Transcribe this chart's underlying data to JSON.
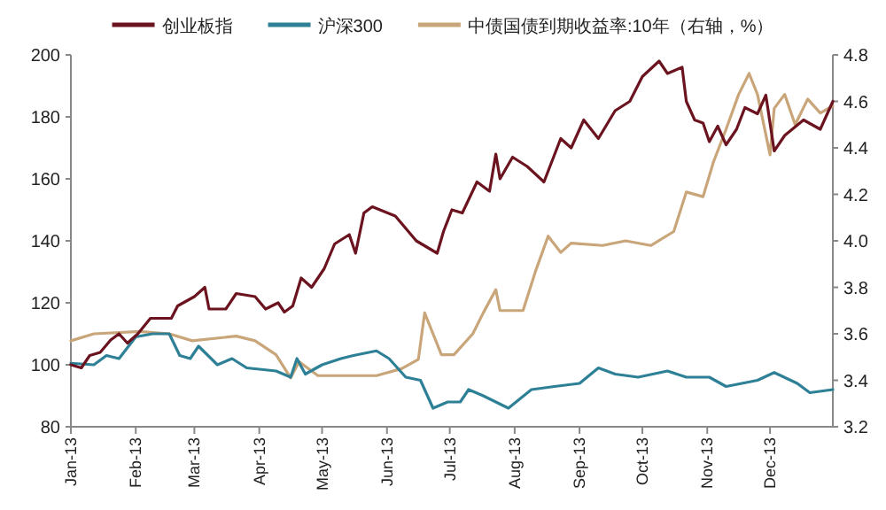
{
  "chart_data": {
    "type": "line",
    "legend": "top",
    "xlim": [
      "2013-01-01",
      "2013-12-31"
    ],
    "xticks": [
      {
        "value": "2013-01-01",
        "label": "Jan-13"
      },
      {
        "value": "2013-02-01",
        "label": "Feb-13"
      },
      {
        "value": "2013-03-01",
        "label": "Mar-13"
      },
      {
        "value": "2013-04-01",
        "label": "Apr-13"
      },
      {
        "value": "2013-05-01",
        "label": "May-13"
      },
      {
        "value": "2013-06-01",
        "label": "Jun-13"
      },
      {
        "value": "2013-07-01",
        "label": "Jul-13"
      },
      {
        "value": "2013-08-01",
        "label": "Aug-13"
      },
      {
        "value": "2013-09-01",
        "label": "Sep-13"
      },
      {
        "value": "2013-10-01",
        "label": "Oct-13"
      },
      {
        "value": "2013-11-01",
        "label": "Nov-13"
      },
      {
        "value": "2013-12-01",
        "label": "Dec-13"
      }
    ],
    "ylim": [
      80,
      200
    ],
    "yticks": [
      80,
      100,
      120,
      140,
      160,
      180,
      200
    ],
    "y2lim": [
      3.2,
      4.8
    ],
    "y2ticks": [
      {
        "value": 3.2,
        "label": "3.2"
      },
      {
        "value": 3.4,
        "label": "3.4"
      },
      {
        "value": 3.6,
        "label": "3.6"
      },
      {
        "value": 3.8,
        "label": "3.8"
      },
      {
        "value": 4.0,
        "label": "4.0"
      },
      {
        "value": 4.2,
        "label": "4.2"
      },
      {
        "value": 4.4,
        "label": "4.4"
      },
      {
        "value": 4.6,
        "label": "4.6"
      },
      {
        "value": 4.8,
        "label": "4.8"
      }
    ],
    "series": [
      {
        "name": "创业板指",
        "color": "#6b1420",
        "x": [
          "2013-01-01",
          "2013-01-06",
          "2013-01-10",
          "2013-01-15",
          "2013-01-20",
          "2013-01-24",
          "2013-01-28",
          "2013-02-02",
          "2013-02-08",
          "2013-02-18",
          "2013-02-21",
          "2013-03-01",
          "2013-03-06",
          "2013-03-08",
          "2013-03-16",
          "2013-03-21",
          "2013-03-30",
          "2013-04-04",
          "2013-04-10",
          "2013-04-13",
          "2013-04-17",
          "2013-04-21",
          "2013-04-26",
          "2013-05-02",
          "2013-05-07",
          "2013-05-14",
          "2013-05-17",
          "2013-05-21",
          "2013-05-25",
          "2013-06-05",
          "2013-06-15",
          "2013-06-25",
          "2013-06-28",
          "2013-07-02",
          "2013-07-07",
          "2013-07-14",
          "2013-07-20",
          "2013-07-23",
          "2013-07-25",
          "2013-07-31",
          "2013-08-07",
          "2013-08-15",
          "2013-08-23",
          "2013-08-28",
          "2013-09-03",
          "2013-09-10",
          "2013-09-18",
          "2013-09-25",
          "2013-10-01",
          "2013-10-09",
          "2013-10-13",
          "2013-10-20",
          "2013-10-22",
          "2013-10-26",
          "2013-10-30",
          "2013-11-02",
          "2013-11-06",
          "2013-11-10",
          "2013-11-15",
          "2013-11-19",
          "2013-11-25",
          "2013-11-29",
          "2013-12-03",
          "2013-12-08",
          "2013-12-17",
          "2013-12-25",
          "2013-12-29",
          "2013-12-31"
        ],
        "values": [
          100,
          99,
          103,
          104,
          108,
          110,
          107,
          110,
          115,
          115,
          119,
          122,
          125,
          118,
          118,
          123,
          122,
          118,
          120,
          117,
          119,
          128,
          125,
          131,
          139,
          142,
          136,
          149,
          151,
          148,
          140,
          136,
          143,
          150,
          149,
          159,
          156,
          168,
          160,
          167,
          164,
          159,
          173,
          170,
          179,
          173,
          182,
          185,
          193,
          198,
          194,
          196,
          185,
          179,
          178,
          172,
          177,
          171,
          176,
          183,
          181,
          187,
          169,
          174,
          179,
          176,
          182,
          185
        ]
      },
      {
        "name": "沪深300",
        "color": "#2e8096",
        "x": [
          "2013-01-01",
          "2013-01-12",
          "2013-01-18",
          "2013-01-24",
          "2013-02-01",
          "2013-02-09",
          "2013-02-17",
          "2013-02-22",
          "2013-02-27",
          "2013-03-03",
          "2013-03-12",
          "2013-03-19",
          "2013-03-26",
          "2013-04-09",
          "2013-04-16",
          "2013-04-19",
          "2013-04-23",
          "2013-05-01",
          "2013-05-10",
          "2013-05-16",
          "2013-05-27",
          "2013-06-02",
          "2013-06-10",
          "2013-06-17",
          "2013-06-23",
          "2013-06-30",
          "2013-07-06",
          "2013-07-10",
          "2013-07-17",
          "2013-07-29",
          "2013-08-09",
          "2013-08-20",
          "2013-09-01",
          "2013-09-10",
          "2013-09-18",
          "2013-09-29",
          "2013-10-13",
          "2013-10-22",
          "2013-11-02",
          "2013-11-10",
          "2013-11-25",
          "2013-12-03",
          "2013-12-14",
          "2013-12-20",
          "2013-12-31"
        ],
        "values": [
          100.5,
          100,
          103,
          102,
          109,
          110,
          110,
          103,
          102,
          106,
          100,
          102,
          99,
          98,
          96,
          102,
          97,
          100,
          102,
          103,
          104.5,
          102,
          96,
          95,
          86,
          88,
          88,
          92,
          90,
          86,
          92,
          93,
          94,
          99,
          97,
          96,
          98,
          96,
          96,
          93,
          95,
          97.5,
          94,
          91,
          92
        ]
      },
      {
        "name": "中债国债到期收益率:10年（右轴，%）",
        "color": "#c9a57a",
        "axis": "y2",
        "x": [
          "2013-01-01",
          "2013-01-12",
          "2013-02-03",
          "2013-02-17",
          "2013-02-28",
          "2013-03-21",
          "2013-03-30",
          "2013-04-09",
          "2013-04-16",
          "2013-04-20",
          "2013-04-29",
          "2013-05-16",
          "2013-05-27",
          "2013-06-08",
          "2013-06-16",
          "2013-06-19",
          "2013-06-23",
          "2013-06-27",
          "2013-07-03",
          "2013-07-12",
          "2013-07-17",
          "2013-07-23",
          "2013-07-25",
          "2013-08-05",
          "2013-08-11",
          "2013-08-17",
          "2013-08-23",
          "2013-08-28",
          "2013-09-12",
          "2013-09-23",
          "2013-10-05",
          "2013-10-16",
          "2013-10-22",
          "2013-10-30",
          "2013-11-04",
          "2013-11-10",
          "2013-11-16",
          "2013-11-21",
          "2013-11-25",
          "2013-12-01",
          "2013-12-03",
          "2013-12-08",
          "2013-12-13",
          "2013-12-19",
          "2013-12-25",
          "2013-12-31"
        ],
        "values": [
          3.57,
          3.6,
          3.61,
          3.6,
          3.57,
          3.59,
          3.57,
          3.51,
          3.41,
          3.48,
          3.42,
          3.42,
          3.42,
          3.45,
          3.49,
          3.69,
          3.6,
          3.51,
          3.51,
          3.6,
          3.69,
          3.79,
          3.7,
          3.7,
          3.87,
          4.02,
          3.95,
          3.99,
          3.98,
          4.0,
          3.98,
          4.04,
          4.21,
          4.19,
          4.34,
          4.48,
          4.63,
          4.72,
          4.63,
          4.37,
          4.57,
          4.63,
          4.5,
          4.61,
          4.55,
          4.58
        ]
      }
    ]
  }
}
